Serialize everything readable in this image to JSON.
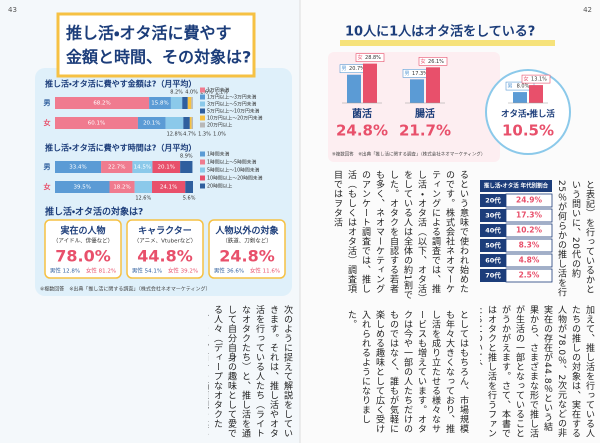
{
  "left_page": {
    "page_number": "43",
    "title_lines": [
      "推し活・オタ活に費やす",
      "金額と時間、その対象は?"
    ],
    "targets_title": "推し活・オタ活の対象は?",
    "targets": [
      {
        "name": "実在の人物",
        "sub": "（アイドル、俳優など）",
        "value": "78.0%",
        "male": "男性 12.8%",
        "female": "女性 81.2%"
      },
      {
        "name": "キャラクター",
        "sub": "（アニメ、Vtuberなど）",
        "value": "44.8%",
        "male": "男性 54.1%",
        "female": "女性 39.2%"
      },
      {
        "name": "人物以外の対象",
        "sub": "（鉄道、刀剣など）",
        "value": "24.8%",
        "male": "男性 36.6%",
        "female": "女性 11.6%"
      }
    ],
    "note": "※複数回答　※出典「推し活に関する調査」（株式会社ネオマーケティング）",
    "body": "次のように捉えて解説をしていきます。それは、推し活やオタ活を行っている人たち（ライトなオタクたち）と、推し活を通して自分自身の趣味として愛でる人々（ディープなオタクたち）です。両者の価値観の違いや、その深さが知識の量となって表れることもあり、オタク市場やオタク文化、サブカルチャーの未来を考えていく上で、オタクについて知っておくことはとても重要なのです。"
  },
  "right_page": {
    "page_number": "42",
    "table_title": "推し活・オタ活 年代別割合",
    "table_rows": [
      [
        "20代",
        "24.9%"
      ],
      [
        "30代",
        "17.3%"
      ],
      [
        "40代",
        "10.2%"
      ],
      [
        "50代",
        "8.3%"
      ],
      [
        "60代",
        "4.8%"
      ],
      [
        "70代",
        "2.5%"
      ]
    ],
    "body_a": "と表記）を行っているかという問いに、20代の約25％が何らかの推し活を行っていると答えています。",
    "body_b": "加えて、推し活を行っている人たちの推しの対象は、実在する人物が78.0％、2次元などの非実在の存在が44.8％という結果から、さまざまな形で推し活が生活の一部となっていることがうかがえます。さて、本書ではオタクと推し活を行うファンたちについて、",
    "body_c": "るという意味で使われ始めたのです。株式会社ネオマーケティングによる調査では、推し活・オタ活（以下、オタ活）をしている人は全体の約1割でした。オタクを自認する若者も多く、ネオマーケティングのアンケート調査では、推し活（もしくはオタ活）調査項目ではヲタ活",
    "body_d": "としてはもちろん、市場規模も年々大きくなっており、推し活を成り立たせる様々なサービスも増えています。オタクは今や一部の人たちだけのものではなく、誰もが気軽に楽しめる趣味として広く受け入れられるようになりました。"
  },
  "chart_data": [
    {
      "type": "stacked_bar_h",
      "title": "推し活・オタ活に費やす金額は?（月平均）",
      "categories": [
        "男",
        "女"
      ],
      "xlim": [
        0,
        100
      ],
      "legend": "right",
      "series": [
        {
          "name": "1万円未満",
          "color": "#f07b8f",
          "values": [
            68.2,
            60.1
          ],
          "value_labels": [
            "68.2%",
            "60.1%"
          ]
        },
        {
          "name": "1万円以上〜3万円未満",
          "color": "#5b9bd5",
          "values": [
            15.8,
            20.1
          ],
          "value_labels": [
            "15.8%",
            "20.1%"
          ]
        },
        {
          "name": "3万円以上〜5万円未満",
          "color": "#8bc9ea",
          "values": [
            8.2,
            12.8
          ],
          "value_labels": [
            "8.2%",
            "12.8%"
          ]
        },
        {
          "name": "5万円以上〜10万円未満",
          "color": "#2f5f9e",
          "values": [
            4.0,
            4.7
          ],
          "value_labels": [
            "4.0%",
            "4.7%"
          ]
        },
        {
          "name": "10万円以上〜20万円未満",
          "color": "#f6c143",
          "values": [
            2.6,
            1.3
          ],
          "value_labels": [
            "2.6%",
            "1.3%"
          ]
        },
        {
          "name": "20万円以上",
          "color": "#b8b8b8",
          "values": [
            1.1,
            1.0
          ],
          "value_labels": [
            "1.1%",
            "1.0%"
          ]
        }
      ]
    },
    {
      "type": "stacked_bar_h",
      "title": "推し活・オタ活に費やす時間は?（月平均）",
      "categories": [
        "男",
        "女"
      ],
      "xlim": [
        0,
        100
      ],
      "legend": "right",
      "series": [
        {
          "name": "1時間未満",
          "color": "#5b9bd5",
          "values": [
            33.4,
            39.5
          ],
          "value_labels": [
            "33.4%",
            "39.5%"
          ]
        },
        {
          "name": "1時間以上〜5時間未満",
          "color": "#f07b8f",
          "values": [
            22.7,
            18.2
          ],
          "value_labels": [
            "22.7%",
            "18.2%"
          ]
        },
        {
          "name": "5時間以上〜10時間未満",
          "color": "#8bc9ea",
          "values": [
            14.5,
            12.6
          ],
          "value_labels": [
            "14.5%",
            "12.6%"
          ]
        },
        {
          "name": "10時間以上〜20時間未満",
          "color": "#e8506b",
          "values": [
            20.1,
            24.1
          ],
          "value_labels": [
            "20.1%",
            "24.1%"
          ]
        },
        {
          "name": "20時間以上",
          "color": "#2f5f9e",
          "values": [
            8.9,
            5.6
          ],
          "value_labels": [
            "8.9%",
            "5.6%"
          ]
        }
      ]
    },
    {
      "type": "bar",
      "title": "10人に1人はオタ活をしている?",
      "categories": [
        "菌活",
        "腸活",
        "オタ活・推し活"
      ],
      "ylim": [
        0,
        30
      ],
      "totals": [
        24.8,
        21.7,
        10.5
      ],
      "total_labels": [
        "24.8%",
        "21.7%",
        "10.5%"
      ],
      "series": [
        {
          "name": "男",
          "color": "#5b9bd5",
          "values": [
            20.7,
            17.3,
            8.0
          ],
          "value_labels": [
            "20.7%",
            "17.3%",
            "8.0%"
          ]
        },
        {
          "name": "女",
          "color": "#e8506b",
          "values": [
            28.8,
            26.1,
            13.1
          ],
          "value_labels": [
            "28.8%",
            "26.1%",
            "13.1%"
          ]
        }
      ],
      "note": "※複数回答　※出典「推し活に関する調査」（株式会社ネオマーケティング）"
    }
  ]
}
